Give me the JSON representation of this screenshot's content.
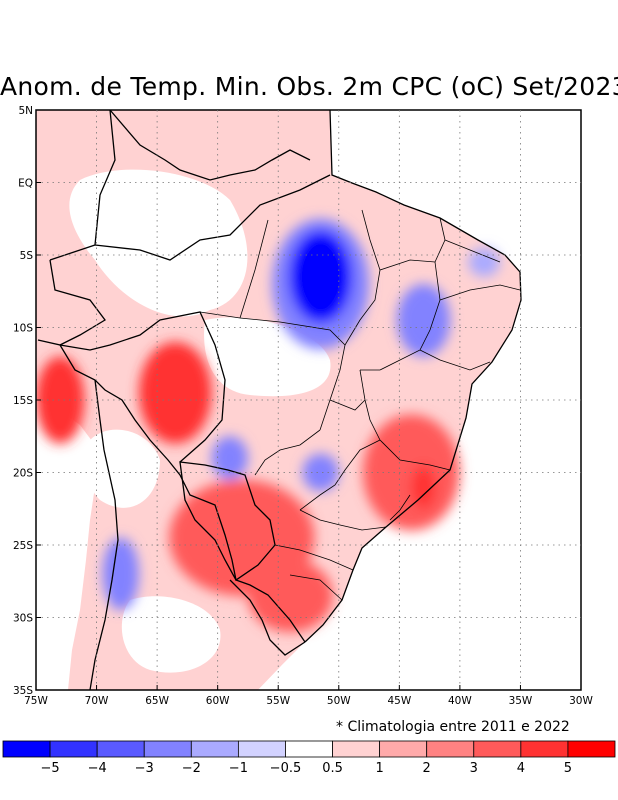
{
  "title": "Anom. de Temp. Min. Obs. 2m CPC (oC) Set/2023",
  "note": "* Climatologia entre 2011 e 2022",
  "map": {
    "lon_range": [
      -75,
      -30
    ],
    "lat_range": [
      -35,
      5
    ],
    "lat_ticks": [
      {
        "value": 5,
        "label": "5N"
      },
      {
        "value": 0,
        "label": "EQ"
      },
      {
        "value": -5,
        "label": "5S"
      },
      {
        "value": -10,
        "label": "10S"
      },
      {
        "value": -15,
        "label": "15S"
      },
      {
        "value": -20,
        "label": "20S"
      },
      {
        "value": -25,
        "label": "25S"
      },
      {
        "value": -30,
        "label": "30S"
      },
      {
        "value": -35,
        "label": "35S"
      }
    ],
    "lon_ticks": [
      {
        "value": -75,
        "label": "75W"
      },
      {
        "value": -70,
        "label": "70W"
      },
      {
        "value": -65,
        "label": "65W"
      },
      {
        "value": -60,
        "label": "60W"
      },
      {
        "value": -55,
        "label": "55W"
      },
      {
        "value": -50,
        "label": "50W"
      },
      {
        "value": -45,
        "label": "45W"
      },
      {
        "value": -40,
        "label": "40W"
      },
      {
        "value": -35,
        "label": "35W"
      },
      {
        "value": -30,
        "label": "30W"
      }
    ],
    "anomaly_regions": [
      {
        "name": "para-maranhao-cold-core",
        "lon": -51.5,
        "lat": -6.5,
        "rlon": 2.6,
        "rlat": 3.2,
        "value": -5
      },
      {
        "name": "para-cold-ring",
        "lon": -51.5,
        "lat": -7.0,
        "rlon": 4.0,
        "rlat": 4.5,
        "value": -2
      },
      {
        "name": "piaui-cold",
        "lon": -43.0,
        "lat": -9.5,
        "rlon": 2.2,
        "rlat": 2.5,
        "value": -2
      },
      {
        "name": "ceara-cold",
        "lon": -38.0,
        "lat": -5.5,
        "rlon": 1.3,
        "rlat": 1.0,
        "value": -1
      },
      {
        "name": "mato-grosso-warm",
        "lon": -63.5,
        "lat": -14.5,
        "rlon": 3.0,
        "rlat": 3.5,
        "value": 4
      },
      {
        "name": "bolivia-peru-warm",
        "lon": -73.0,
        "lat": -15.0,
        "rlon": 2.0,
        "rlat": 3.0,
        "value": 4
      },
      {
        "name": "minas-gerais-warm",
        "lon": -44.0,
        "lat": -20.0,
        "rlon": 4.0,
        "rlat": 4.0,
        "value": 3
      },
      {
        "name": "minas-gerais-hot-spot",
        "lon": -43.0,
        "lat": -21.0,
        "rlon": 1.0,
        "rlat": 1.5,
        "value": 4
      },
      {
        "name": "paraguay-parana-warm",
        "lon": -58.0,
        "lat": -24.5,
        "rlon": 6.0,
        "rlat": 4.0,
        "value": 3
      },
      {
        "name": "rio-grande-do-sul-warm",
        "lon": -54.0,
        "lat": -28.5,
        "rlon": 3.5,
        "rlat": 2.5,
        "value": 3
      },
      {
        "name": "goias-cold",
        "lon": -59.0,
        "lat": -19.0,
        "rlon": 1.5,
        "rlat": 1.5,
        "value": -2
      },
      {
        "name": "mato-grosso-do-sul-cold",
        "lon": -51.5,
        "lat": -20.0,
        "rlon": 1.5,
        "rlat": 1.3,
        "value": -2
      },
      {
        "name": "argentina-cold",
        "lon": -68.0,
        "lat": -27.0,
        "rlon": 1.5,
        "rlat": 2.5,
        "value": -2
      }
    ]
  },
  "colorbar": {
    "colors": [
      "#0000ff",
      "#3232ff",
      "#5a5aff",
      "#8282ff",
      "#aaaaff",
      "#d2d2ff",
      "#ffffff",
      "#ffd2d2",
      "#ffaaaa",
      "#ff8282",
      "#ff5a5a",
      "#ff3232",
      "#ff0000"
    ],
    "tick_labels": [
      "−5",
      "−4",
      "−3",
      "−2",
      "−1",
      "−0.5",
      "0.5",
      "1",
      "2",
      "3",
      "4",
      "5"
    ]
  }
}
